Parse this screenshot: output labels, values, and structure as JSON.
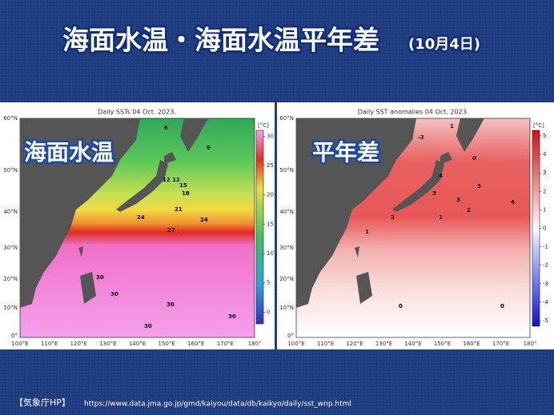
{
  "header": {
    "title": "海面水温・海面水温平年差",
    "date": "(10月4日)"
  },
  "panels": [
    {
      "title": "Daily SSTs 04 Oct. 2023.",
      "overlay": "海面水温",
      "unit": "[°C]",
      "lat_labels": [
        "60°N",
        "50°N",
        "40°N",
        "30°N",
        "20°N",
        "10°N",
        "0°"
      ],
      "lon_labels": [
        "100°E",
        "110°E",
        "120°E",
        "130°E",
        "140°E",
        "150°E",
        "160°E",
        "170°E",
        "180°"
      ],
      "colorbar": {
        "range": [
          -2,
          31
        ],
        "ticks": [
          0,
          5,
          10,
          15,
          20,
          25,
          30
        ]
      },
      "contour_labels": [
        "6",
        "9",
        "12",
        "12",
        "15",
        "18",
        "21",
        "24",
        "24",
        "27",
        "30",
        "30",
        "30",
        "30",
        "30"
      ]
    },
    {
      "title": "Daily SST anomalies 04 Oct. 2023.",
      "overlay": "平年差",
      "unit": "[°C]",
      "lat_labels": [
        "60°N",
        "50°N",
        "40°N",
        "30°N",
        "20°N",
        "10°N",
        "0°"
      ],
      "lon_labels": [
        "100°E",
        "110°E",
        "120°E",
        "130°E",
        "140°E",
        "150°E",
        "160°E",
        "170°E",
        "180°"
      ],
      "colorbar": {
        "range": [
          -5.3,
          5.3
        ],
        "ticks": [
          -5,
          -4,
          -3,
          -2,
          -1,
          0,
          1,
          2,
          3,
          4,
          5
        ]
      },
      "contour_labels": [
        "-2",
        "1",
        "4",
        "3",
        "2",
        "3",
        "4",
        "3",
        "2",
        "1",
        "0",
        "1",
        "0",
        "0"
      ]
    }
  ],
  "source": {
    "label": "【気象庁HP】",
    "url": "https://www.data.jma.go.jp/gmd/kaiyou/data/db/kaikyo/daily/sst_wnp.html"
  }
}
